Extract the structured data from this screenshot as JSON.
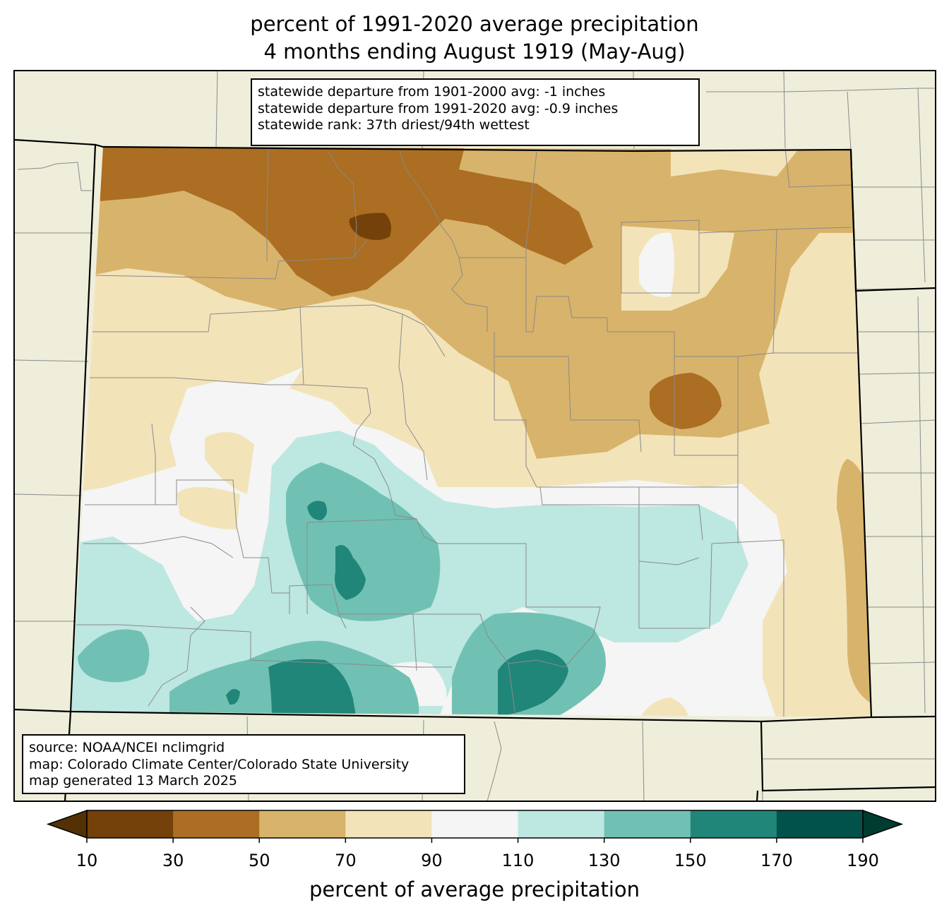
{
  "title_line1": "percent of 1991-2020 average precipitation",
  "title_line2": "4 months ending August 1919 (May-Aug)",
  "stats": {
    "line1": "statewide departure from 1901-2000 avg: -1 inches",
    "line2": "statewide departure from 1991-2020 avg: -0.9 inches",
    "line3": "statewide rank: 37th driest/94th wettest"
  },
  "source": {
    "line1": "source: NOAA/NCEI nclimgrid",
    "line2": "map: Colorado Climate Center/Colorado State University",
    "line3": "map generated 13 March 2025"
  },
  "colorbar": {
    "label": "percent of average precipitation",
    "ticks": [
      "10",
      "30",
      "50",
      "70",
      "90",
      "110",
      "130",
      "150",
      "170",
      "190"
    ],
    "bin_colors": [
      "#734109",
      "#ab6e22",
      "#d8b36b",
      "#f3e3b9",
      "#f4f5f4",
      "#bde7e1",
      "#70c1b4",
      "#208679",
      "#01524a"
    ],
    "under_color": "#543005",
    "over_color": "#003c30"
  },
  "colors": {
    "background_land": "#efeedb",
    "county_lines": "#8a8a8a",
    "state_lines": "#000000"
  }
}
